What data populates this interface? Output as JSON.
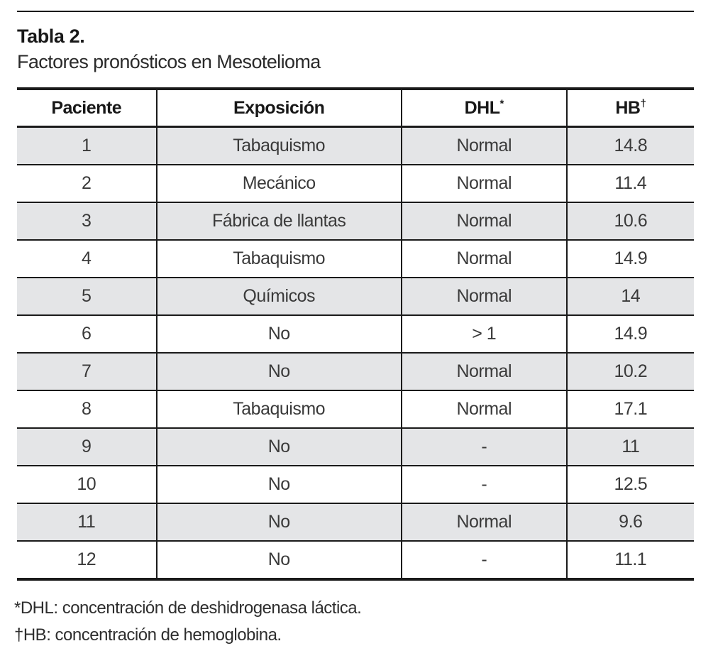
{
  "page": {
    "title": "Tabla 2.",
    "subtitle": "Factores pronósticos en Mesotelioma"
  },
  "table": {
    "columns": [
      {
        "label": "Paciente",
        "sup": ""
      },
      {
        "label": "Exposición",
        "sup": ""
      },
      {
        "label": "DHL",
        "sup": "*"
      },
      {
        "label": "HB",
        "sup": "†"
      }
    ],
    "rows": [
      {
        "paciente": "1",
        "exposicion": "Tabaquismo",
        "dhl": "Normal",
        "hb": "14.8"
      },
      {
        "paciente": "2",
        "exposicion": "Mecánico",
        "dhl": "Normal",
        "hb": "11.4"
      },
      {
        "paciente": "3",
        "exposicion": "Fábrica de llantas",
        "dhl": "Normal",
        "hb": "10.6"
      },
      {
        "paciente": "4",
        "exposicion": "Tabaquismo",
        "dhl": "Normal",
        "hb": "14.9"
      },
      {
        "paciente": "5",
        "exposicion": "Químicos",
        "dhl": "Normal",
        "hb": "14"
      },
      {
        "paciente": "6",
        "exposicion": "No",
        "dhl": "> 1",
        "hb": "14.9"
      },
      {
        "paciente": "7",
        "exposicion": "No",
        "dhl": "Normal",
        "hb": "10.2"
      },
      {
        "paciente": "8",
        "exposicion": "Tabaquismo",
        "dhl": "Normal",
        "hb": "17.1"
      },
      {
        "paciente": "9",
        "exposicion": "No",
        "dhl": "-",
        "hb": "11"
      },
      {
        "paciente": "10",
        "exposicion": "No",
        "dhl": "-",
        "hb": "12.5"
      },
      {
        "paciente": "11",
        "exposicion": "No",
        "dhl": "Normal",
        "hb": "9.6"
      },
      {
        "paciente": "12",
        "exposicion": "No",
        "dhl": "-",
        "hb": "11.1"
      }
    ]
  },
  "footnotes": {
    "dhl": "*DHL: concentración de deshidrogenasa láctica.",
    "hb": "†HB: concentración de hemoglobina."
  },
  "colors": {
    "row_stripe": "#e4e5e7",
    "border": "#1a1a1a",
    "heading_text": "#181818",
    "cell_text": "#3a3a3a"
  }
}
